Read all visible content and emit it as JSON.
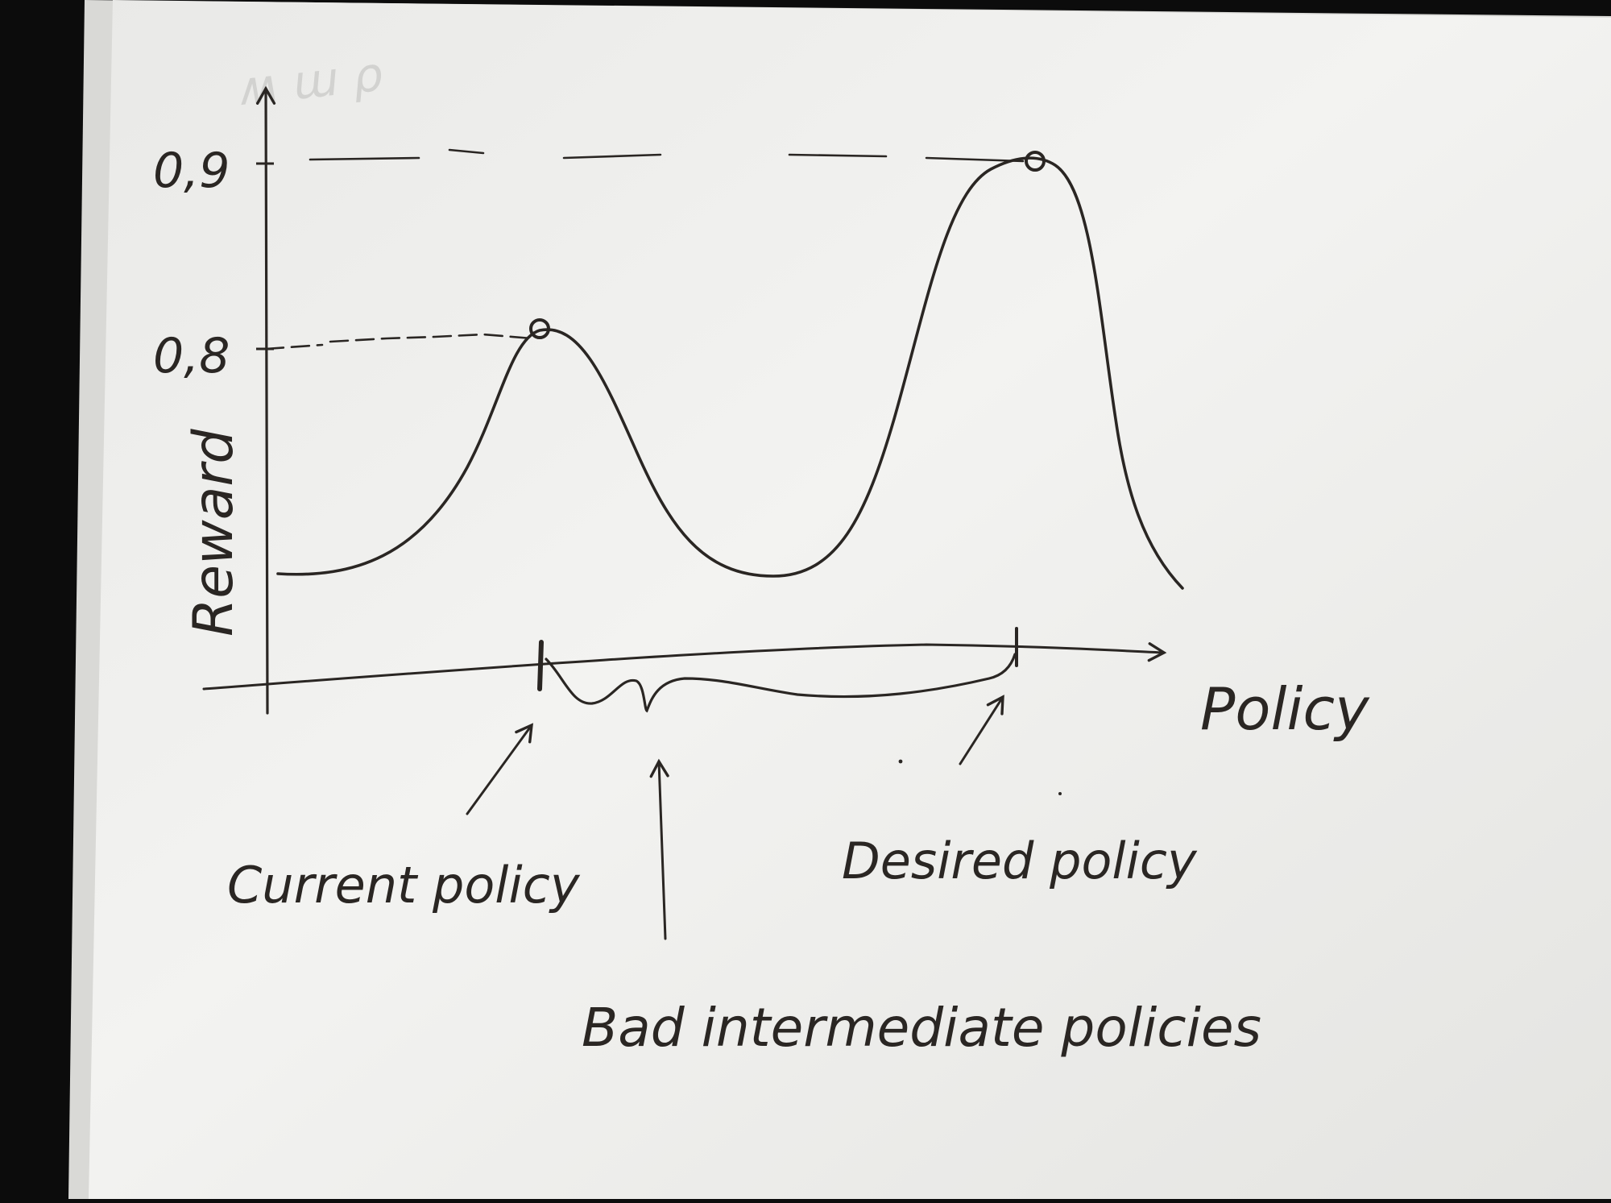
{
  "colors": {
    "background": "#0c0c0c",
    "paper": "#f1f1ef",
    "ink": "#2a2623"
  },
  "axes": {
    "y_label": "Reward",
    "x_label": "Policy",
    "y_ticks": [
      "0,9",
      "0,8"
    ]
  },
  "annotations": {
    "current": "Current policy",
    "desired": "Desired policy",
    "bad": "Bad intermediate policies"
  }
}
